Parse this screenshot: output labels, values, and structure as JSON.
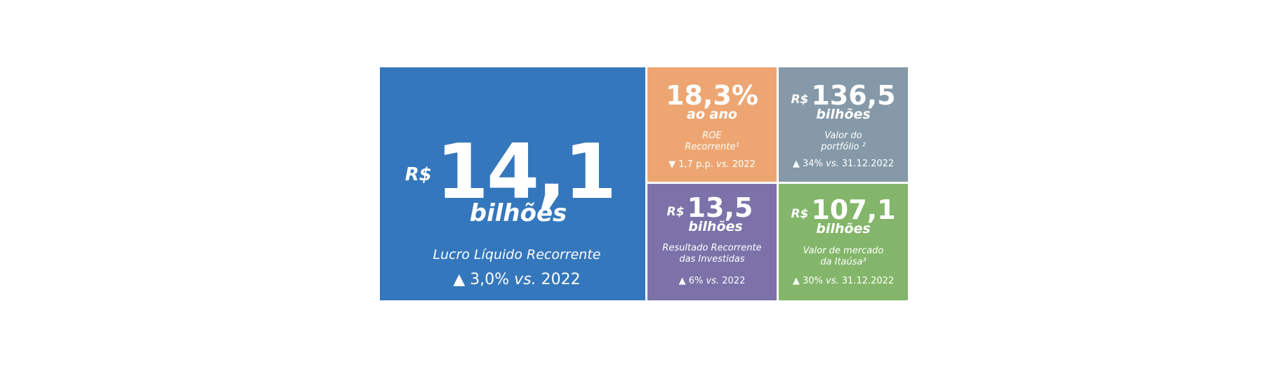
{
  "colors": {
    "main": "#3477BC",
    "roe": "#EDA672",
    "portfolio": "#8599A8",
    "investidas": "#7C72A9",
    "mercado": "#83B66A"
  },
  "main": {
    "currency": "R$",
    "value": "14,1",
    "unit": "bilhões",
    "description": "Lucro Líquido Recorrente",
    "delta": {
      "direction": "up",
      "arrow": "▲",
      "value": "3,0%",
      "vs": "vs.",
      "reference": "2022"
    }
  },
  "roe": {
    "value": "18,3%",
    "unit": "ao ano",
    "description_line1": "ROE",
    "description_line2": "Recorrente¹",
    "delta": {
      "direction": "down",
      "arrow": "▼",
      "value": "1,7 p.p.",
      "vs": "vs.",
      "reference": "2022"
    }
  },
  "portfolio": {
    "currency": "R$",
    "value": "136,5",
    "unit": "bilhões",
    "description_line1": "Valor do",
    "description_line2": "portfólio ²",
    "delta": {
      "direction": "up",
      "arrow": "▲",
      "value": "34%",
      "vs": "vs.",
      "reference": "31.12.2022"
    }
  },
  "investidas": {
    "currency": "R$",
    "value": "13,5",
    "unit": "bilhões",
    "description_line1": "Resultado Recorrente",
    "description_line2": "das Investidas",
    "delta": {
      "direction": "up",
      "arrow": "▲",
      "value": "6%",
      "vs": "vs.",
      "reference": "2022"
    }
  },
  "mercado": {
    "currency": "R$",
    "value": "107,1",
    "unit": "bilhões",
    "description_line1": "Valor de mercado",
    "description_line2": "da Itaúsa³",
    "delta": {
      "direction": "up",
      "arrow": "▲",
      "value": "30%",
      "vs": "vs.",
      "reference": "31.12.2022"
    }
  }
}
